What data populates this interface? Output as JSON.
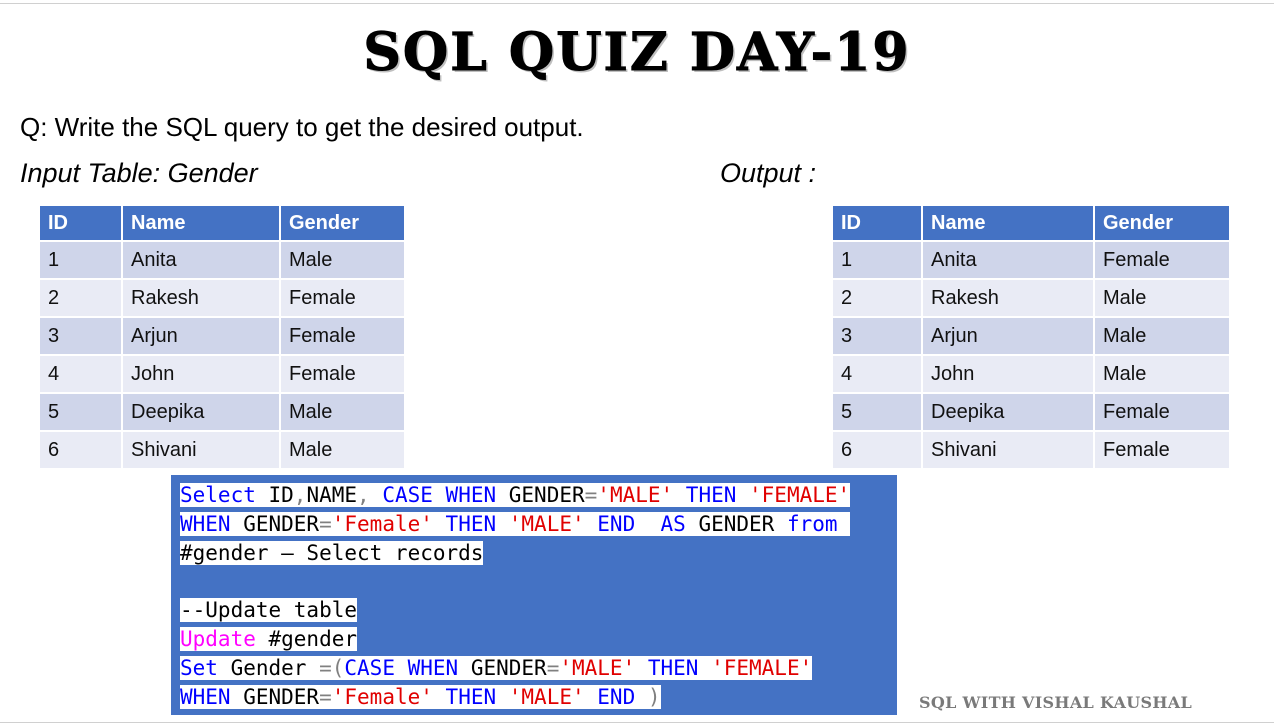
{
  "title": "SQL QUIZ DAY-19",
  "question": "Q: Write the SQL query to get the desired output.",
  "input_label": "Input Table: Gender",
  "output_label": "Output :",
  "columns": [
    "ID",
    "Name",
    "Gender"
  ],
  "input_rows": [
    [
      "1",
      "Anita",
      "Male"
    ],
    [
      "2",
      "Rakesh",
      "Female"
    ],
    [
      "3",
      "Arjun",
      "Female"
    ],
    [
      "4",
      "John",
      "Female"
    ],
    [
      "5",
      "Deepika",
      "Male"
    ],
    [
      "6",
      "Shivani",
      "Male"
    ]
  ],
  "output_rows": [
    [
      "1",
      "Anita",
      "Female"
    ],
    [
      "2",
      "Rakesh",
      "Male"
    ],
    [
      "3",
      "Arjun",
      "Male"
    ],
    [
      "4",
      "John",
      "Male"
    ],
    [
      "5",
      "Deepika",
      "Female"
    ],
    [
      "6",
      "Shivani",
      "Female"
    ]
  ],
  "code": {
    "l1": {
      "select": "Select",
      "cols": " ID",
      "c1": ",",
      "name": "NAME",
      "c2": ",",
      "case": " CASE",
      "when": " WHEN",
      "gender": " GENDER",
      "eq": "=",
      "male": "'MALE'",
      "then": " THEN",
      "female": " 'FEMALE'"
    },
    "l2": {
      "when": "WHEN",
      "gender": " GENDER",
      "eq": "=",
      "female": "'Female'",
      "then": " THEN",
      "male": " 'MALE'",
      "end": " END",
      "as": "  AS",
      "gender2": " GENDER",
      "from": " from"
    },
    "l3": "#gender – Select records",
    "l4": "--Update table",
    "l5": {
      "update": "Update",
      "table": " #gender"
    },
    "l6": {
      "set": "Set",
      "gender": " Gender",
      "eq": " =(",
      "case": "CASE",
      "when": " WHEN",
      "gender2": " GENDER",
      "eq2": "=",
      "male": "'MALE'",
      "then": " THEN",
      "female": " 'FEMALE'"
    },
    "l7": {
      "when": "WHEN",
      "gender": " GENDER",
      "eq": "=",
      "female": "'Female'",
      "then": " THEN",
      "male": " 'MALE'",
      "end": " END",
      "paren": " )"
    }
  },
  "watermark": "SQL WITH VISHAL KAUSHAL",
  "colors": {
    "header_blue": "#4472c4",
    "row_dark": "#cfd5ea",
    "row_light": "#e9ebf5",
    "keyword_blue": "#0000ff",
    "string_red": "#e00000",
    "update_magenta": "#ff00ff"
  }
}
